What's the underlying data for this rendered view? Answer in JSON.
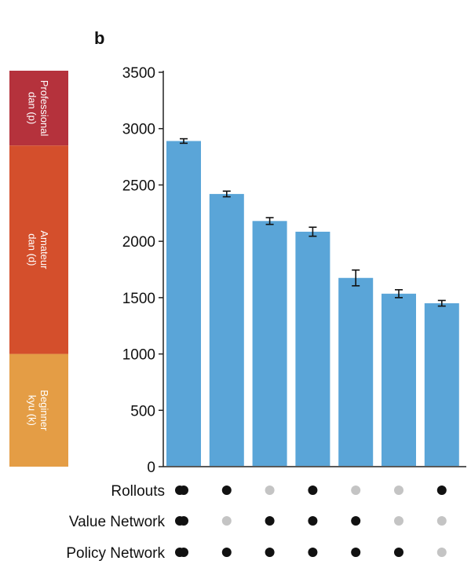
{
  "chart_data": {
    "type": "bar",
    "panel_label": "b",
    "ylim": [
      0,
      3500
    ],
    "yticks": [
      "0",
      "500",
      "1000",
      "1500",
      "2000",
      "2500",
      "3000",
      "3500"
    ],
    "ytick_values": [
      0,
      500,
      1000,
      1500,
      2000,
      2500,
      3000,
      3500
    ],
    "values": [
      2890,
      2420,
      2180,
      2085,
      1675,
      1535,
      1450
    ],
    "errors": [
      20,
      25,
      30,
      40,
      70,
      35,
      25
    ],
    "bar_color": "#5aa5d8",
    "rank_bands": [
      {
        "label": "Professional dan (p)",
        "from": 2850,
        "to": 3550,
        "color": "#b5323c"
      },
      {
        "label": "Amateur dan (d)",
        "from": 1000,
        "to": 2850,
        "color": "#d44f2c"
      },
      {
        "label": "Beginner kyu (k)",
        "from": 0,
        "to": 1000,
        "color": "#e49d45"
      }
    ],
    "components": [
      {
        "label": "Rollouts",
        "used": [
          true,
          true,
          false,
          true,
          false,
          false,
          true
        ]
      },
      {
        "label": "Value Network",
        "used": [
          true,
          false,
          true,
          true,
          true,
          false,
          false
        ]
      },
      {
        "label": "Policy Network",
        "used": [
          true,
          true,
          true,
          true,
          true,
          true,
          false
        ]
      }
    ],
    "dot_colors": {
      "on": "#111111",
      "off": "#c4c4c4"
    }
  }
}
